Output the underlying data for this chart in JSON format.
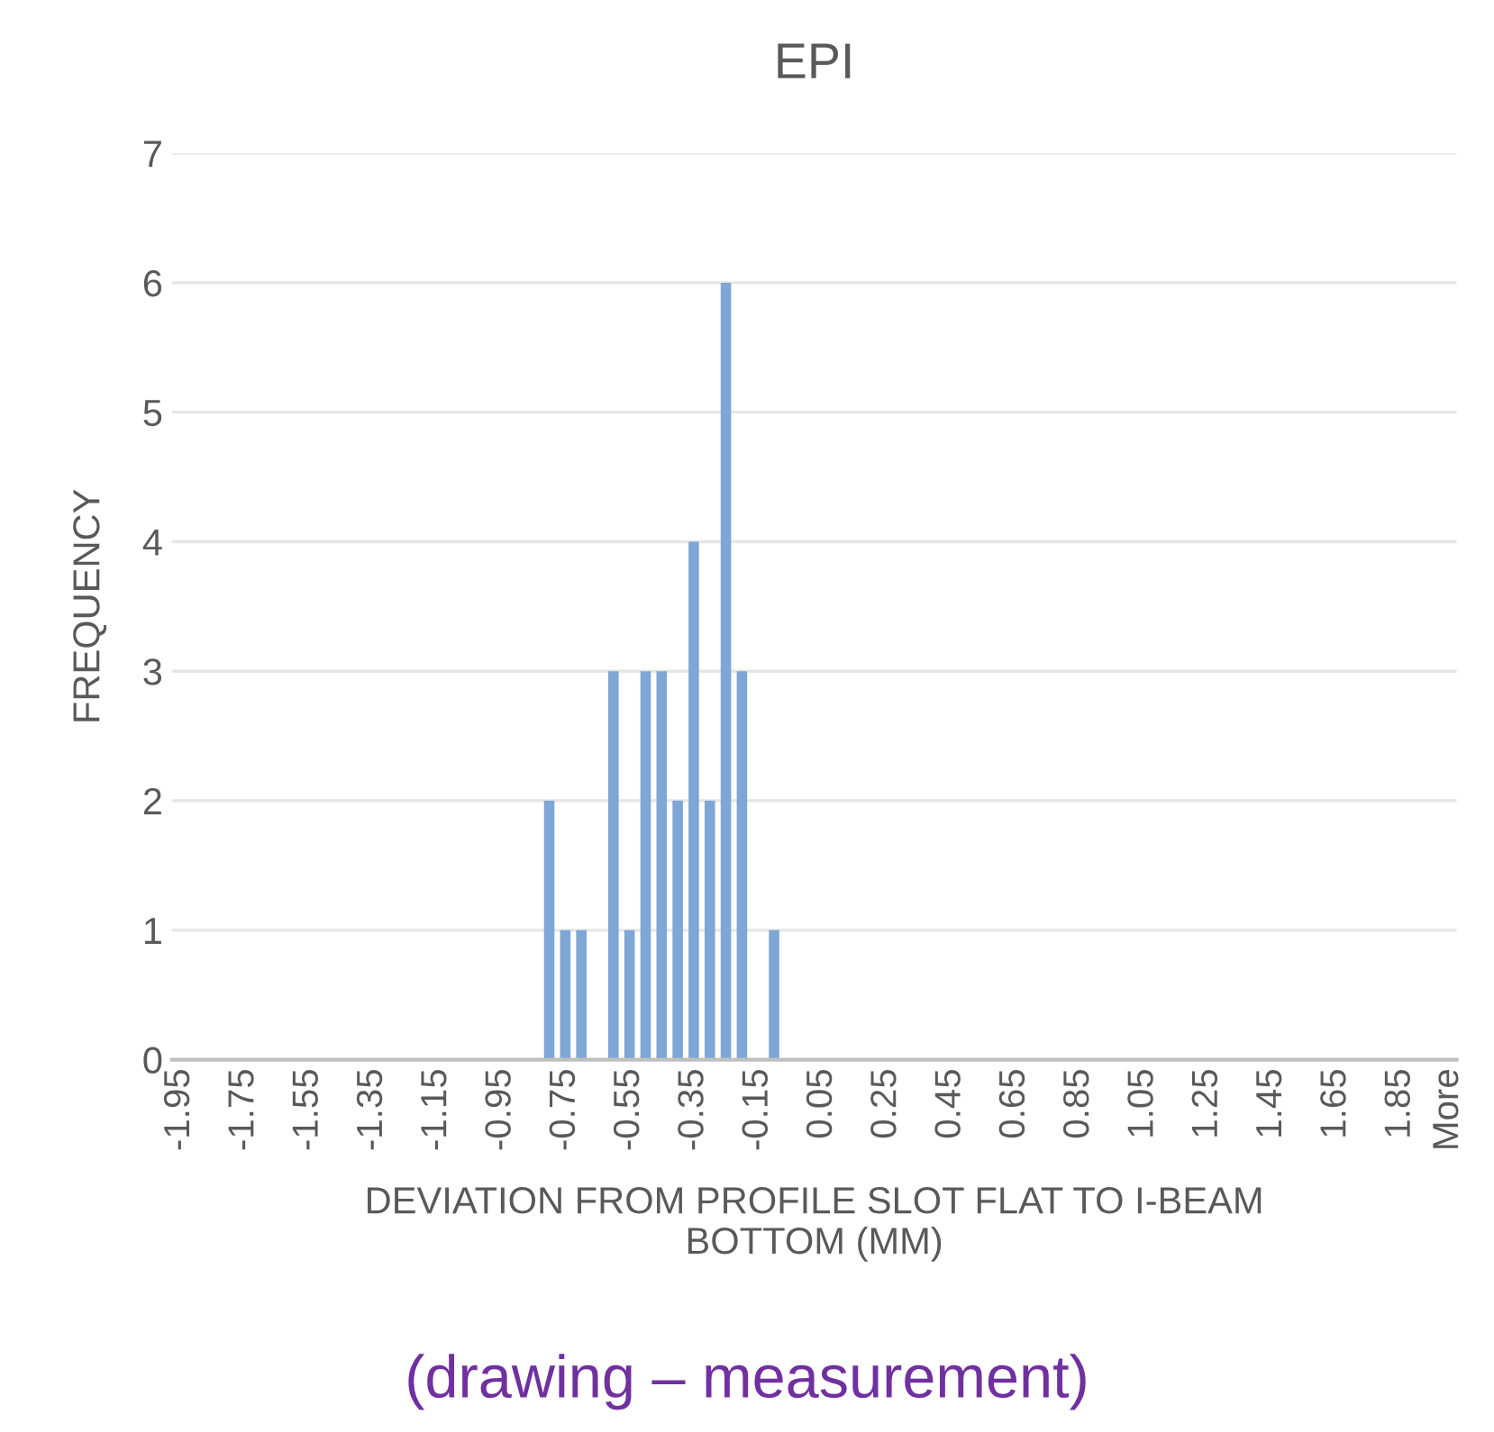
{
  "chart_data": {
    "type": "bar",
    "title": "EPI",
    "xlabel": "DEVIATION FROM PROFILE SLOT FLAT TO I-BEAM\nBOTTOM (MM)",
    "ylabel": "FREQUENCY",
    "annotations": [
      "(drawing – measurement)"
    ],
    "categories": [
      "-1.95",
      null,
      null,
      null,
      "-1.75",
      null,
      null,
      null,
      "-1.55",
      null,
      null,
      null,
      "-1.35",
      null,
      null,
      null,
      "-1.15",
      null,
      null,
      null,
      "-0.95",
      null,
      null,
      null,
      "-0.75",
      null,
      null,
      null,
      "-0.55",
      null,
      null,
      null,
      "-0.35",
      null,
      null,
      null,
      "-0.15",
      null,
      null,
      null,
      "0.05",
      null,
      null,
      null,
      "0.25",
      null,
      null,
      null,
      "0.45",
      null,
      null,
      null,
      "0.65",
      null,
      null,
      null,
      "0.85",
      null,
      null,
      null,
      "1.05",
      null,
      null,
      null,
      "1.25",
      null,
      null,
      null,
      "1.45",
      null,
      null,
      null,
      "1.65",
      null,
      null,
      null,
      "1.85",
      null,
      null,
      "More"
    ],
    "values": [
      0,
      0,
      0,
      0,
      0,
      0,
      0,
      0,
      0,
      0,
      0,
      0,
      0,
      0,
      0,
      0,
      0,
      0,
      0,
      0,
      0,
      0,
      0,
      2,
      1,
      1,
      0,
      3,
      1,
      3,
      3,
      2,
      4,
      2,
      6,
      3,
      0,
      1,
      0,
      0,
      0,
      0,
      0,
      0,
      0,
      0,
      0,
      0,
      0,
      0,
      0,
      0,
      0,
      0,
      0,
      0,
      0,
      0,
      0,
      0,
      0,
      0,
      0,
      0,
      0,
      0,
      0,
      0,
      0,
      0,
      0,
      0,
      0,
      0,
      0,
      0,
      0,
      0,
      0,
      0
    ],
    "color": "#7ea6d6",
    "ylim": [
      0,
      7
    ],
    "yticks": [
      0,
      1,
      2,
      3,
      4,
      5,
      6,
      7
    ],
    "grid": "y"
  }
}
